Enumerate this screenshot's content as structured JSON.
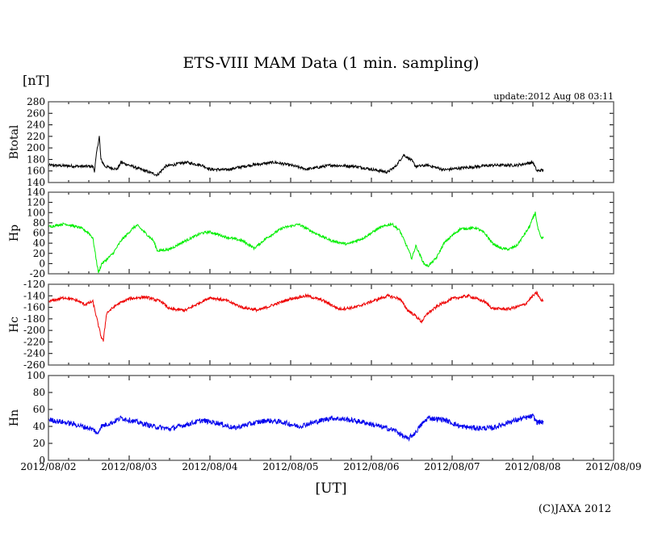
{
  "chart_data": {
    "type": "line",
    "title": "ETS-VIII MAM Data (1 min. sampling)",
    "unit_label": "[nT]",
    "update_text": "update:2012 Aug 08 03:11",
    "xlabel": "[UT]",
    "copyright": "(C)JAXA 2012",
    "x_tick_labels": [
      "2012/08/02",
      "2012/08/03",
      "2012/08/04",
      "2012/08/05",
      "2012/08/06",
      "2012/08/07",
      "2012/08/08",
      "2012/08/09"
    ],
    "xlim_days": [
      0,
      7
    ],
    "x_unit": "days since 2012/08/02 00:00 UT",
    "grid": false,
    "panels": [
      {
        "name": "Btotal",
        "color": "#000000",
        "ylim": [
          140,
          280
        ],
        "yticks": [
          140,
          160,
          180,
          200,
          220,
          240,
          260,
          280
        ],
        "noise": 2.5,
        "points": [
          [
            0,
            170
          ],
          [
            0.4,
            168
          ],
          [
            0.55,
            168
          ],
          [
            0.57,
            160
          ],
          [
            0.6,
            195
          ],
          [
            0.63,
            220
          ],
          [
            0.65,
            180
          ],
          [
            0.7,
            168
          ],
          [
            0.85,
            163
          ],
          [
            0.9,
            175
          ],
          [
            1.0,
            170
          ],
          [
            1.2,
            160
          ],
          [
            1.35,
            153
          ],
          [
            1.45,
            168
          ],
          [
            1.7,
            175
          ],
          [
            1.9,
            170
          ],
          [
            2.0,
            163
          ],
          [
            2.2,
            162
          ],
          [
            2.5,
            170
          ],
          [
            2.8,
            175
          ],
          [
            3.0,
            170
          ],
          [
            3.2,
            163
          ],
          [
            3.5,
            170
          ],
          [
            3.8,
            168
          ],
          [
            4.0,
            163
          ],
          [
            4.2,
            158
          ],
          [
            4.3,
            168
          ],
          [
            4.4,
            188
          ],
          [
            4.5,
            178
          ],
          [
            4.55,
            168
          ],
          [
            4.7,
            170
          ],
          [
            4.9,
            162
          ],
          [
            5.1,
            165
          ],
          [
            5.5,
            170
          ],
          [
            5.8,
            170
          ],
          [
            6.0,
            175
          ],
          [
            6.05,
            160
          ],
          [
            6.13,
            162
          ]
        ]
      },
      {
        "name": "Hp",
        "color": "#00ee00",
        "ylim": [
          -20,
          140
        ],
        "yticks": [
          -20,
          0,
          20,
          40,
          60,
          80,
          100,
          120,
          140
        ],
        "noise": 2.5,
        "points": [
          [
            0,
            72
          ],
          [
            0.2,
            78
          ],
          [
            0.4,
            70
          ],
          [
            0.5,
            60
          ],
          [
            0.55,
            50
          ],
          [
            0.6,
            0
          ],
          [
            0.62,
            -18
          ],
          [
            0.66,
            0
          ],
          [
            0.7,
            5
          ],
          [
            0.8,
            20
          ],
          [
            0.9,
            45
          ],
          [
            1.05,
            70
          ],
          [
            1.1,
            75
          ],
          [
            1.2,
            60
          ],
          [
            1.3,
            45
          ],
          [
            1.35,
            25
          ],
          [
            1.5,
            28
          ],
          [
            1.7,
            45
          ],
          [
            1.9,
            60
          ],
          [
            2.0,
            62
          ],
          [
            2.2,
            52
          ],
          [
            2.4,
            45
          ],
          [
            2.55,
            30
          ],
          [
            2.7,
            50
          ],
          [
            2.9,
            70
          ],
          [
            3.1,
            77
          ],
          [
            3.3,
            60
          ],
          [
            3.5,
            45
          ],
          [
            3.7,
            38
          ],
          [
            3.9,
            50
          ],
          [
            4.1,
            70
          ],
          [
            4.25,
            78
          ],
          [
            4.35,
            65
          ],
          [
            4.45,
            30
          ],
          [
            4.5,
            10
          ],
          [
            4.55,
            35
          ],
          [
            4.65,
            0
          ],
          [
            4.7,
            -5
          ],
          [
            4.8,
            10
          ],
          [
            4.9,
            40
          ],
          [
            5.0,
            55
          ],
          [
            5.1,
            68
          ],
          [
            5.3,
            70
          ],
          [
            5.4,
            60
          ],
          [
            5.5,
            40
          ],
          [
            5.6,
            30
          ],
          [
            5.7,
            28
          ],
          [
            5.8,
            35
          ],
          [
            5.95,
            70
          ],
          [
            6.03,
            100
          ],
          [
            6.06,
            70
          ],
          [
            6.1,
            50
          ],
          [
            6.13,
            50
          ]
        ]
      },
      {
        "name": "Hc",
        "color": "#ee0000",
        "ylim": [
          -260,
          -120
        ],
        "yticks": [
          -260,
          -240,
          -220,
          -200,
          -180,
          -160,
          -140,
          -120
        ],
        "noise": 2.5,
        "points": [
          [
            0,
            -150
          ],
          [
            0.2,
            -143
          ],
          [
            0.35,
            -148
          ],
          [
            0.45,
            -155
          ],
          [
            0.55,
            -150
          ],
          [
            0.6,
            -180
          ],
          [
            0.65,
            -210
          ],
          [
            0.68,
            -218
          ],
          [
            0.72,
            -170
          ],
          [
            0.85,
            -155
          ],
          [
            1.0,
            -145
          ],
          [
            1.2,
            -142
          ],
          [
            1.4,
            -150
          ],
          [
            1.5,
            -163
          ],
          [
            1.7,
            -165
          ],
          [
            1.9,
            -150
          ],
          [
            2.0,
            -143
          ],
          [
            2.2,
            -148
          ],
          [
            2.4,
            -160
          ],
          [
            2.6,
            -165
          ],
          [
            2.8,
            -155
          ],
          [
            3.0,
            -145
          ],
          [
            3.2,
            -140
          ],
          [
            3.4,
            -148
          ],
          [
            3.6,
            -163
          ],
          [
            3.8,
            -160
          ],
          [
            4.0,
            -150
          ],
          [
            4.2,
            -140
          ],
          [
            4.35,
            -145
          ],
          [
            4.45,
            -165
          ],
          [
            4.55,
            -175
          ],
          [
            4.62,
            -185
          ],
          [
            4.7,
            -170
          ],
          [
            4.85,
            -155
          ],
          [
            5.0,
            -145
          ],
          [
            5.2,
            -140
          ],
          [
            5.4,
            -150
          ],
          [
            5.5,
            -162
          ],
          [
            5.7,
            -163
          ],
          [
            5.9,
            -155
          ],
          [
            6.0,
            -140
          ],
          [
            6.05,
            -135
          ],
          [
            6.1,
            -148
          ],
          [
            6.13,
            -148
          ]
        ]
      },
      {
        "name": "Hn",
        "color": "#0000ee",
        "ylim": [
          0,
          100
        ],
        "yticks": [
          0,
          20,
          40,
          60,
          80,
          100
        ],
        "noise": 3,
        "points": [
          [
            0,
            48
          ],
          [
            0.3,
            43
          ],
          [
            0.5,
            38
          ],
          [
            0.58,
            35
          ],
          [
            0.6,
            30
          ],
          [
            0.65,
            40
          ],
          [
            0.8,
            45
          ],
          [
            0.9,
            50
          ],
          [
            1.1,
            45
          ],
          [
            1.3,
            40
          ],
          [
            1.5,
            37
          ],
          [
            1.7,
            42
          ],
          [
            1.9,
            47
          ],
          [
            2.1,
            44
          ],
          [
            2.3,
            38
          ],
          [
            2.5,
            43
          ],
          [
            2.7,
            47
          ],
          [
            2.9,
            45
          ],
          [
            3.1,
            40
          ],
          [
            3.3,
            45
          ],
          [
            3.5,
            50
          ],
          [
            3.7,
            48
          ],
          [
            3.9,
            45
          ],
          [
            4.1,
            40
          ],
          [
            4.3,
            35
          ],
          [
            4.4,
            28
          ],
          [
            4.45,
            25
          ],
          [
            4.55,
            33
          ],
          [
            4.6,
            40
          ],
          [
            4.7,
            50
          ],
          [
            4.9,
            48
          ],
          [
            5.1,
            40
          ],
          [
            5.3,
            38
          ],
          [
            5.5,
            38
          ],
          [
            5.7,
            45
          ],
          [
            5.9,
            50
          ],
          [
            6.0,
            52
          ],
          [
            6.05,
            45
          ],
          [
            6.13,
            45
          ]
        ]
      }
    ]
  }
}
